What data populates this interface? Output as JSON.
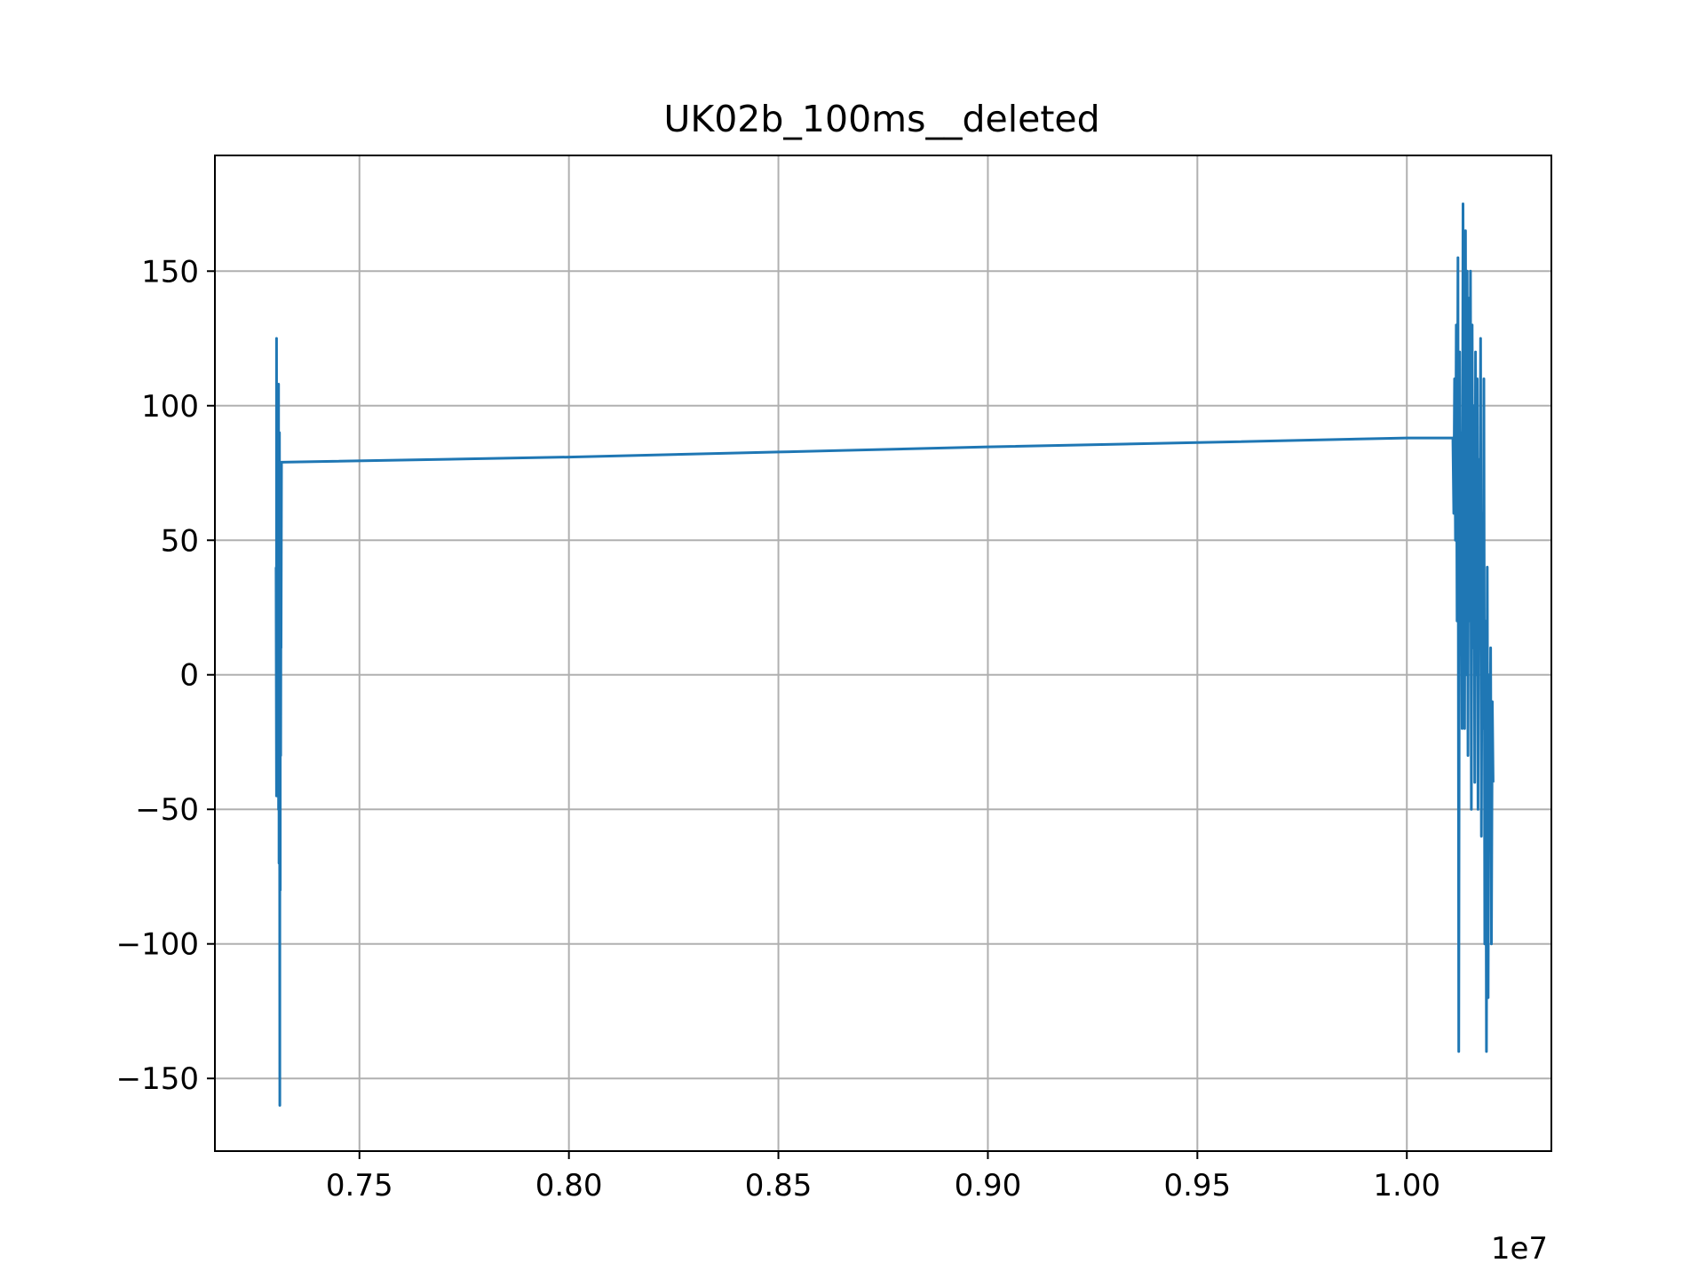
{
  "chart_data": {
    "type": "line",
    "title": "UK02b_100ms__deleted",
    "xlabel": "",
    "ylabel": "",
    "x_offset_label": "1e7",
    "xlim": [
      0.7155,
      1.0345
    ],
    "ylim": [
      -177,
      193
    ],
    "grid": true,
    "x_ticks": [
      0.75,
      0.8,
      0.85,
      0.9,
      0.95,
      1.0
    ],
    "x_tick_labels": [
      "0.75",
      "0.80",
      "0.85",
      "0.90",
      "0.95",
      "1.00"
    ],
    "y_ticks": [
      150,
      100,
      50,
      0,
      -50,
      -100,
      -150
    ],
    "y_tick_labels": [
      "150",
      "100",
      "50",
      "0",
      "−50",
      "−100",
      "−150"
    ],
    "colors": {
      "series": "#1f77b4",
      "grid": "#b0b0b0",
      "axes": "#000000"
    },
    "series": [
      {
        "x": [
          0.7301,
          0.7302,
          0.7302,
          0.7303,
          0.7303,
          0.7304,
          0.7304,
          0.7305,
          0.7305,
          0.7306,
          0.7306,
          0.7307,
          0.7307,
          0.7308,
          0.7308,
          0.7309,
          0.731,
          0.731,
          0.7311,
          0.7311,
          0.7312,
          0.7313,
          0.7313,
          0.7314,
          0.7315,
          0.8,
          0.85,
          0.9,
          0.95,
          1.0,
          1.011,
          1.0112,
          1.0114,
          1.0116,
          1.0118,
          1.012,
          1.0122,
          1.0124,
          1.0126,
          1.0128,
          1.013,
          1.0132,
          1.0134,
          1.0136,
          1.0138,
          1.014,
          1.0142,
          1.0144,
          1.0146,
          1.0148,
          1.015,
          1.0152,
          1.0154,
          1.0156,
          1.0158,
          1.016,
          1.0162,
          1.0164,
          1.0166,
          1.0168,
          1.017,
          1.0172,
          1.0174,
          1.0176,
          1.0178,
          1.018,
          1.0182,
          1.0184,
          1.0186,
          1.0188,
          1.019,
          1.0192,
          1.0194,
          1.0196,
          1.0198,
          1.02,
          1.0202,
          1.0204,
          1.0206
        ],
        "y": [
          40,
          -45,
          125,
          -40,
          108,
          -45,
          60,
          100,
          -40,
          80,
          -15,
          108,
          -50,
          30,
          -70,
          90,
          -160,
          40,
          -80,
          70,
          -30,
          60,
          10,
          79,
          79,
          80.9,
          82.8,
          84.7,
          86.3,
          88,
          88,
          60,
          110,
          50,
          130,
          20,
          155,
          -140,
          120,
          30,
          90,
          -20,
          175,
          60,
          -20,
          165,
          0,
          150,
          -30,
          140,
          20,
          150,
          -50,
          130,
          10,
          100,
          -40,
          120,
          0,
          110,
          -50,
          80,
          10,
          125,
          -60,
          60,
          -20,
          110,
          -100,
          20,
          -140,
          40,
          -120,
          0,
          -60,
          10,
          -100,
          -10,
          -40
        ]
      }
    ]
  }
}
